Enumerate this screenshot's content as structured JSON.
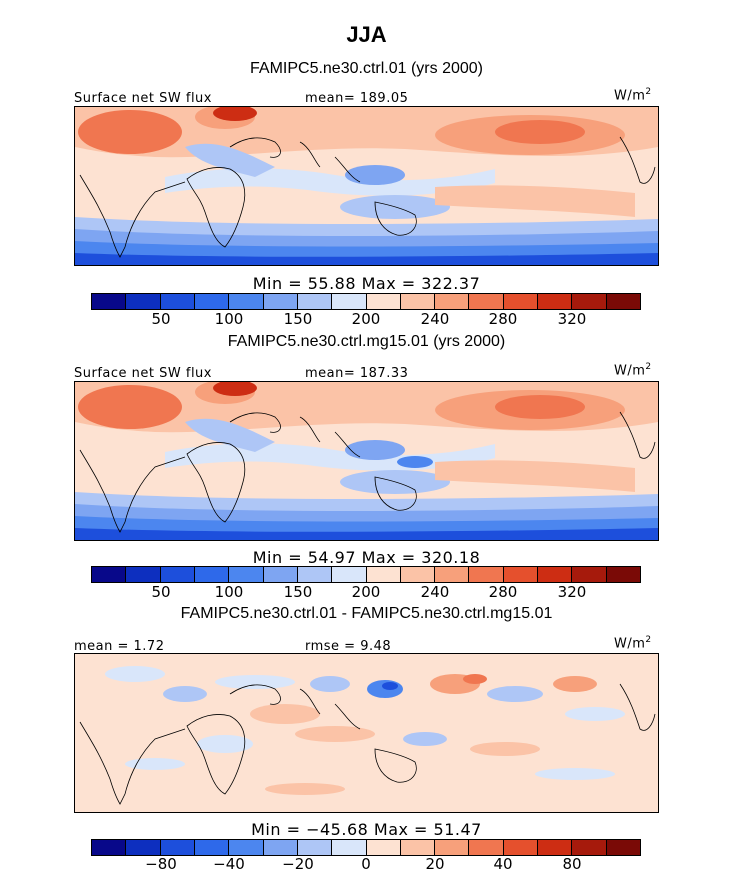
{
  "title": "JJA",
  "units": "W/m",
  "units_sup": "2",
  "colors": {
    "bg": "#ffffff",
    "ocean_base": "#fde2d2",
    "coast": "#000000"
  },
  "chart_data": [
    {
      "type": "heatmap",
      "case_title": "FAMIPC5.ne30.ctrl.01 (yrs 2000)",
      "left_label": "Surface net SW flux",
      "center_label": "mean=  189.05",
      "right_label": "W/m",
      "right_label_sup": "2",
      "stats_label": "Min =   55.88  Max =  322.37",
      "min": 55.88,
      "max": 322.37,
      "mean": 189.05,
      "palette": [
        "#08088a",
        "#0d2fbf",
        "#1d4fdc",
        "#2e69ea",
        "#4c86ef",
        "#7ea5f2",
        "#aec6f6",
        "#d9e6fa",
        "#fde2d2",
        "#fbc3a7",
        "#f7a07b",
        "#f07650",
        "#e5502d",
        "#cd2d13",
        "#a61a0c",
        "#7a0a06"
      ],
      "colorbar_ticks": [
        "50",
        "100",
        "150",
        "200",
        "240",
        "280",
        "320"
      ]
    },
    {
      "type": "heatmap",
      "case_title": "FAMIPC5.ne30.ctrl.mg15.01 (yrs 2000)",
      "left_label": "Surface net SW flux",
      "center_label": "mean=  187.33",
      "right_label": "W/m",
      "right_label_sup": "2",
      "stats_label": "Min =   54.97  Max =  320.18",
      "min": 54.97,
      "max": 320.18,
      "mean": 187.33,
      "palette": [
        "#08088a",
        "#0d2fbf",
        "#1d4fdc",
        "#2e69ea",
        "#4c86ef",
        "#7ea5f2",
        "#aec6f6",
        "#d9e6fa",
        "#fde2d2",
        "#fbc3a7",
        "#f7a07b",
        "#f07650",
        "#e5502d",
        "#cd2d13",
        "#a61a0c",
        "#7a0a06"
      ],
      "colorbar_ticks": [
        "50",
        "100",
        "150",
        "200",
        "240",
        "280",
        "320"
      ]
    },
    {
      "type": "heatmap",
      "case_title": "FAMIPC5.ne30.ctrl.01 - FAMIPC5.ne30.ctrl.mg15.01",
      "left_label": "mean =    1.72",
      "center_label": "rmse =    9.48",
      "right_label": "W/m",
      "right_label_sup": "2",
      "stats_label": "Min =  −45.68  Max =   51.47",
      "min": -45.68,
      "max": 51.47,
      "mean": 1.72,
      "rmse": 9.48,
      "palette": [
        "#08088a",
        "#0d2fbf",
        "#1d4fdc",
        "#2e69ea",
        "#4c86ef",
        "#7ea5f2",
        "#aec6f6",
        "#d9e6fa",
        "#fde2d2",
        "#fbc3a7",
        "#f7a07b",
        "#f07650",
        "#e5502d",
        "#cd2d13",
        "#a61a0c",
        "#7a0a06"
      ],
      "colorbar_ticks": [
        "−80",
        "−40",
        "−20",
        "0",
        "20",
        "40",
        "80"
      ]
    }
  ]
}
